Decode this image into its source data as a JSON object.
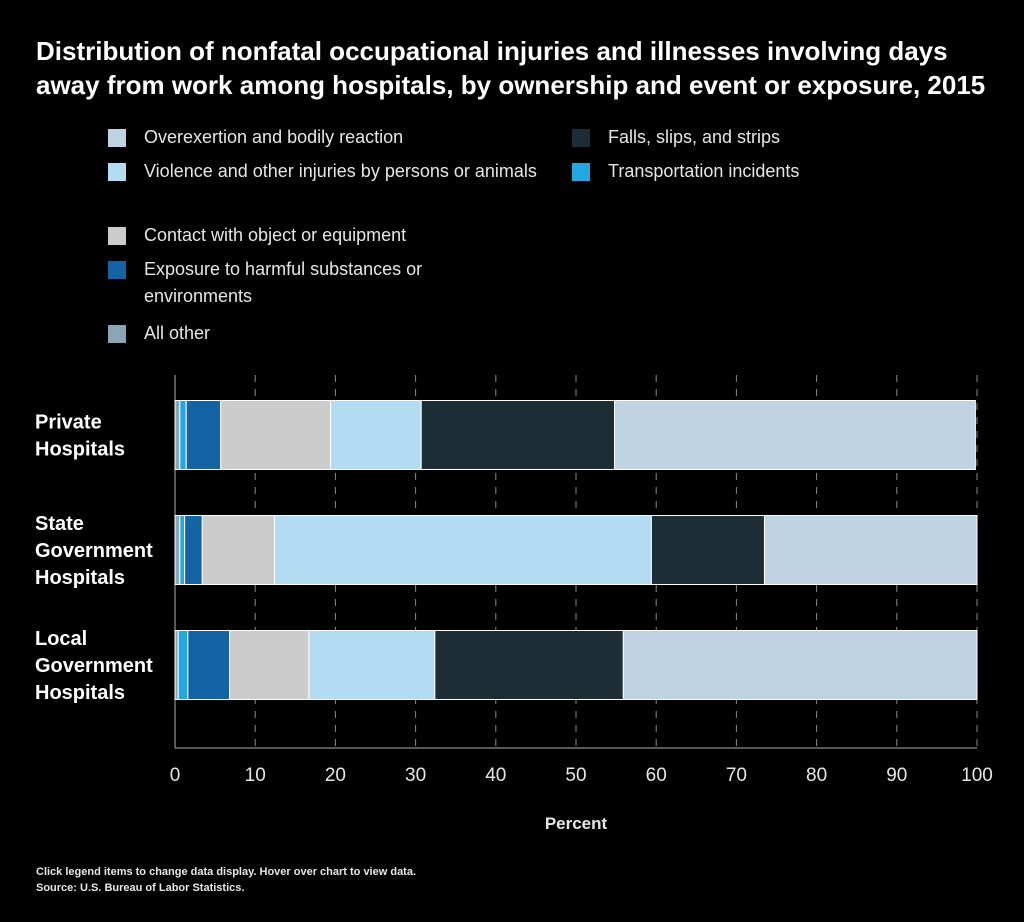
{
  "title": "Distribution of nonfatal occupational injuries and illnesses involving days away from work among hospitals, by ownership and event or exposure, 2015",
  "footer": {
    "instructions": "Click legend items to change data display. Hover over chart to view data.",
    "source": "Source: U.S. Bureau of Labor Statistics."
  },
  "chart_data": {
    "type": "bar",
    "orientation": "horizontal",
    "stacked": true,
    "title": "Distribution of nonfatal occupational injuries and illnesses involving days away from work among hospitals, by ownership and event or exposure, 2015",
    "xlabel": "Percent",
    "ylabel": "",
    "xlim": [
      0,
      100
    ],
    "xticks": [
      0,
      10,
      20,
      30,
      40,
      50,
      60,
      70,
      80,
      90,
      100
    ],
    "grid": "vertical dashed",
    "legend_position": "top",
    "categories": [
      "Private Hospitals",
      "State Government Hospitals",
      "Local Government Hospitals"
    ],
    "category_labels": [
      [
        "Private",
        "Hospitals"
      ],
      [
        "State",
        "Government",
        "Hospitals"
      ],
      [
        "Local",
        "Government",
        "Hospitals"
      ]
    ],
    "stack_order": [
      "All other",
      "Transportation incidents",
      "Exposure to harmful substances or environments",
      "Contact with object or equipment",
      "Violence and other injuries by persons or animals",
      "Falls, slips, and strips",
      "Overexertion and bodily reaction"
    ],
    "series": [
      {
        "name": "Overexertion and bodily reaction",
        "color": "#c0d3e3",
        "values": [
          45.0,
          26.5,
          44.1
        ]
      },
      {
        "name": "Violence and other injuries by persons or animals",
        "color": "#b3dcf3",
        "values": [
          11.3,
          47.0,
          15.7
        ]
      },
      {
        "name": "Contact with object or equipment",
        "color": "#cccccc",
        "values": [
          13.7,
          9.0,
          9.9
        ]
      },
      {
        "name": "Exposure to harmful substances or environments",
        "color": "#1464a5",
        "values": [
          4.3,
          2.2,
          5.2
        ]
      },
      {
        "name": "All other",
        "color": "#88a6b6",
        "values": [
          0.6,
          0.6,
          0.4
        ]
      },
      {
        "name": "Falls, slips, and strips",
        "color": "#1d2d35",
        "values": [
          24.1,
          14.1,
          23.5
        ]
      },
      {
        "name": "Transportation incidents",
        "color": "#23a8e3",
        "values": [
          0.8,
          0.6,
          1.2
        ]
      }
    ]
  }
}
